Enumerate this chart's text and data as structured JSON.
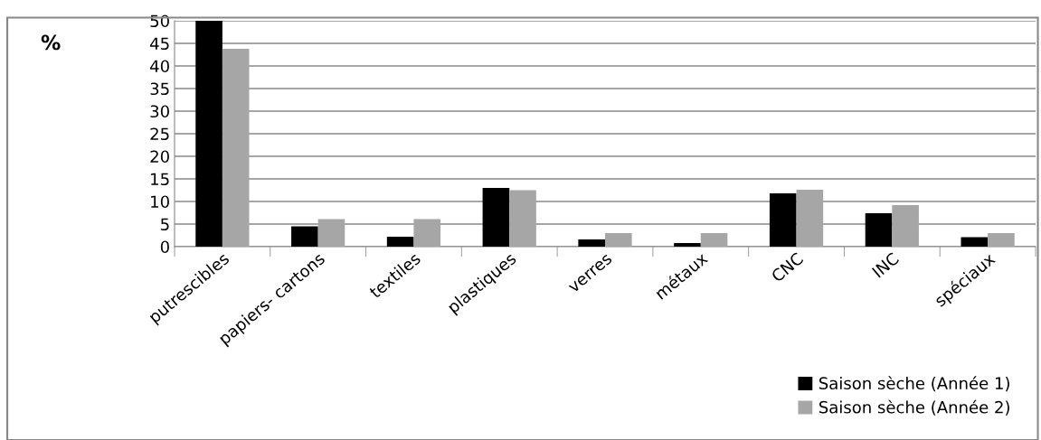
{
  "chart_data": {
    "type": "bar",
    "ylabel": "%",
    "categories": [
      "putrescibles",
      "papiers- cartons",
      "textiles",
      "plastiques",
      "verres",
      "métaux",
      "CNC",
      "INC",
      "spéciaux"
    ],
    "series": [
      {
        "name": "Saison sèche (Année 1)",
        "color": "#000000",
        "values": [
          50,
          4.5,
          2.2,
          13,
          1.6,
          0.8,
          11.8,
          7.4,
          2.1
        ]
      },
      {
        "name": "Saison sèche (Année 2)",
        "color": "#a6a6a6",
        "values": [
          43.8,
          6.1,
          6.1,
          12.5,
          3,
          3,
          12.6,
          9.2,
          3
        ]
      }
    ],
    "ylim": [
      0,
      50
    ],
    "yticks": [
      0,
      5,
      10,
      15,
      20,
      25,
      30,
      35,
      40,
      45,
      50
    ],
    "grid": "y",
    "legend": "bottom right"
  }
}
